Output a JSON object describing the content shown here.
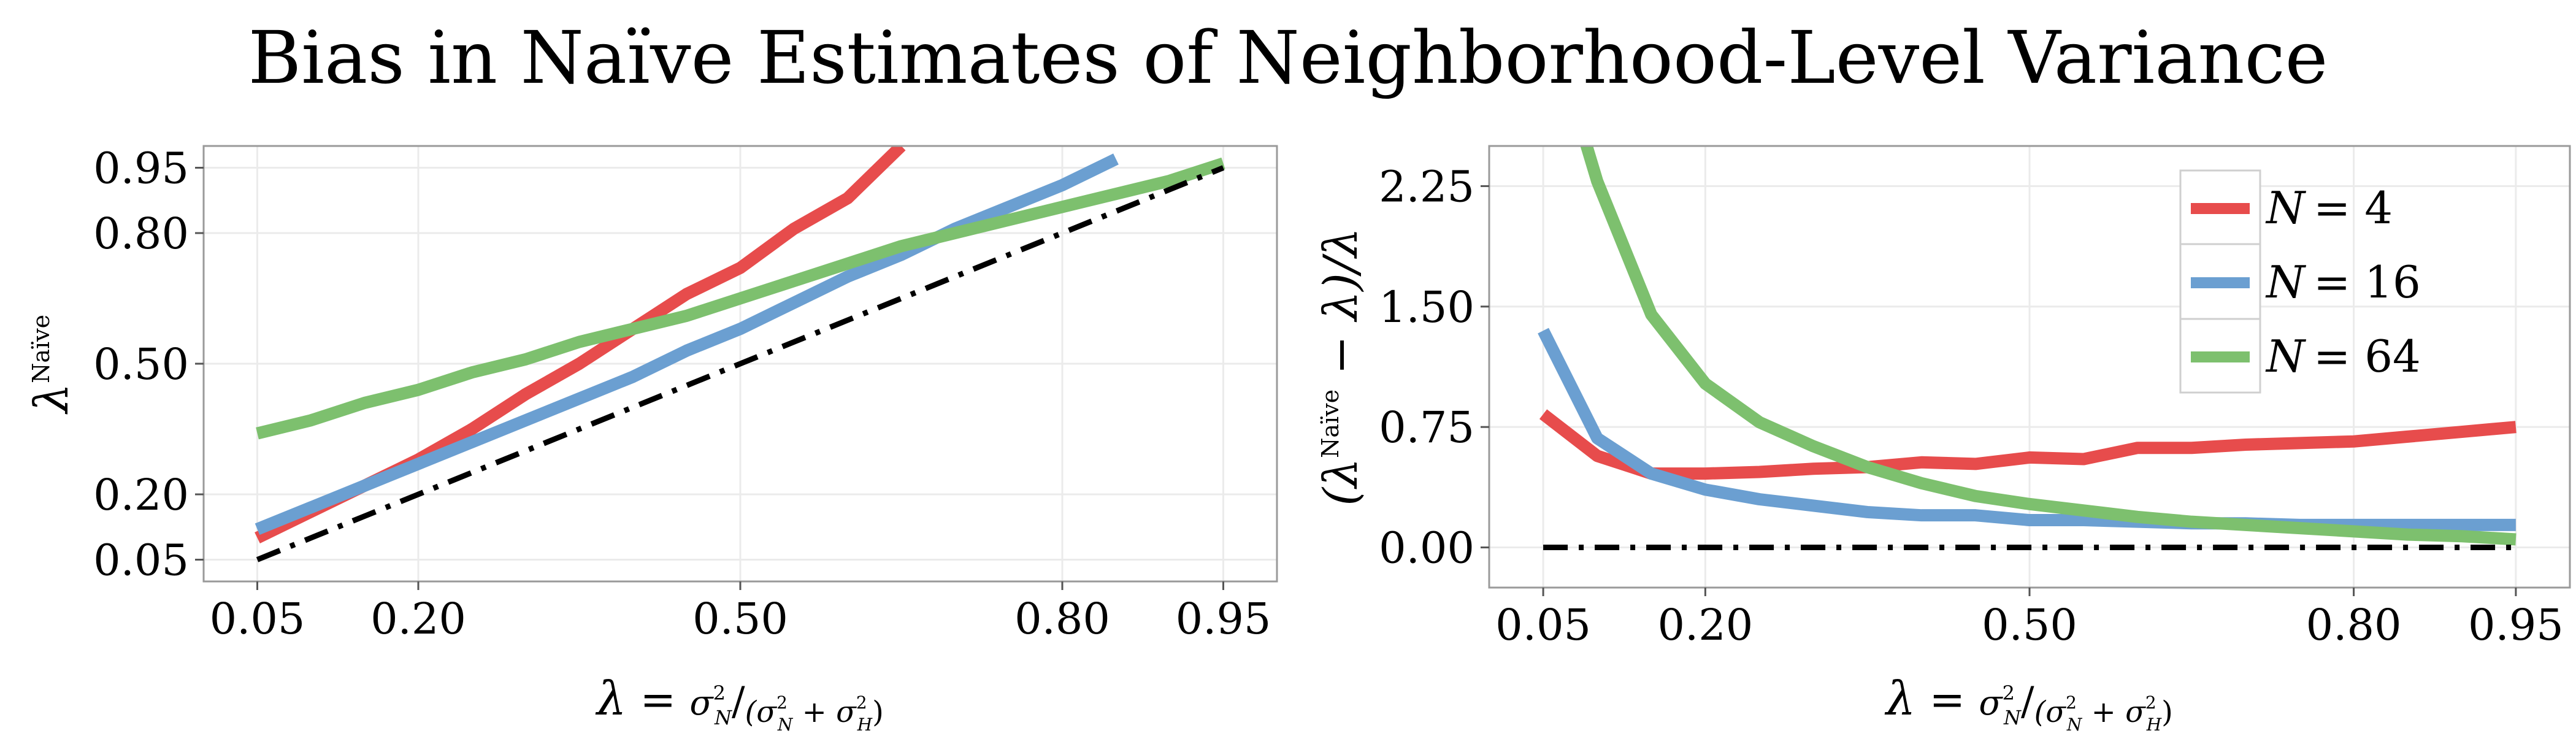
{
  "figure_title": "Bias in Naïve Estimates of Neighborhood-Level Variance",
  "colors": {
    "N = 4": "#E74C4C",
    "N = 16": "#6B9FD1",
    "N = 64": "#7DC06E",
    "reference": "#000000",
    "grid": "#EBEBEB",
    "panel_border": "#9A9A9A"
  },
  "legend": {
    "entries": [
      {
        "name": "N = 4",
        "N": "N",
        "eq": "= 4"
      },
      {
        "name": "N = 16",
        "N": "N",
        "eq": "= 16"
      },
      {
        "name": "N = 64",
        "N": "N",
        "eq": "= 64"
      }
    ],
    "placement": "top-right of right panel"
  },
  "chart_data": [
    {
      "type": "line",
      "panel": "left",
      "xlabel": {
        "lambda": "λ",
        "eq": " = ",
        "num": "σ",
        "num_sub": "N",
        "num_sup": "2",
        "den_open": "(σ",
        "den_sub1": "N",
        "den_sup1": "2",
        "plus": " + σ",
        "den_sub2": "H",
        "den_sup2": "2",
        "den_close": ")"
      },
      "ylabel": {
        "lambda": "λ",
        "sup": "Naïve"
      },
      "xlim": [
        0.0,
        1.0
      ],
      "ylim": [
        0.0,
        1.0
      ],
      "xticks": [
        "0.05",
        "0.20",
        "0.50",
        "0.80",
        "0.95"
      ],
      "yticks": [
        "0.05",
        "0.20",
        "0.50",
        "0.80",
        "0.95"
      ],
      "x": [
        0.05,
        0.1,
        0.15,
        0.2,
        0.25,
        0.3,
        0.35,
        0.4,
        0.45,
        0.5,
        0.55,
        0.6,
        0.65,
        0.7,
        0.75,
        0.8,
        0.85,
        0.9,
        0.95
      ],
      "series": [
        {
          "name": "N = 4",
          "values": [
            0.1,
            0.16,
            0.22,
            0.28,
            0.35,
            0.43,
            0.5,
            0.58,
            0.66,
            0.72,
            0.81,
            0.88,
            1.0,
            null,
            null,
            null,
            null,
            null,
            null
          ]
        },
        {
          "name": "N = 16",
          "values": [
            0.12,
            0.17,
            0.22,
            0.27,
            0.32,
            0.37,
            0.42,
            0.47,
            0.53,
            0.58,
            0.64,
            0.7,
            0.75,
            0.81,
            0.86,
            0.91,
            0.97,
            null,
            null
          ]
        },
        {
          "name": "N = 64",
          "values": [
            0.34,
            0.37,
            0.41,
            0.44,
            0.48,
            0.51,
            0.55,
            0.58,
            0.61,
            0.65,
            0.69,
            0.73,
            0.77,
            0.8,
            0.83,
            0.86,
            0.89,
            0.92,
            0.96
          ]
        },
        {
          "reference": true,
          "values": [
            0.05,
            0.1,
            0.15,
            0.2,
            0.25,
            0.3,
            0.35,
            0.4,
            0.45,
            0.5,
            0.55,
            0.6,
            0.65,
            0.7,
            0.75,
            0.8,
            0.85,
            0.9,
            0.95
          ]
        }
      ],
      "grid": true
    },
    {
      "type": "line",
      "panel": "right",
      "xlabel": {
        "lambda": "λ",
        "eq": " = ",
        "num": "σ",
        "num_sub": "N",
        "num_sup": "2",
        "den_open": "(σ",
        "den_sub1": "N",
        "den_sup1": "2",
        "plus": " + σ",
        "den_sub2": "H",
        "den_sup2": "2",
        "den_close": ")"
      },
      "ylabel": {
        "open": "(λ",
        "sup": "Naïve",
        "rest": " − λ)/λ"
      },
      "xlim": [
        0.0,
        1.0
      ],
      "ylim": [
        -0.25,
        2.5
      ],
      "xticks": [
        "0.05",
        "0.20",
        "0.50",
        "0.80",
        "0.95"
      ],
      "yticks": [
        "0.00",
        "0.75",
        "1.50",
        "2.25"
      ],
      "x": [
        0.05,
        0.1,
        0.15,
        0.2,
        0.25,
        0.3,
        0.35,
        0.4,
        0.45,
        0.5,
        0.55,
        0.6,
        0.65,
        0.7,
        0.75,
        0.8,
        0.85,
        0.9,
        0.95
      ],
      "series": [
        {
          "name": "N = 4",
          "values": [
            0.83,
            0.57,
            0.46,
            0.46,
            0.47,
            0.49,
            0.5,
            0.53,
            0.52,
            0.56,
            0.55,
            0.62,
            0.62,
            0.64,
            0.65,
            0.66,
            0.69,
            0.72,
            0.75
          ]
        },
        {
          "name": "N = 16",
          "values": [
            1.35,
            0.68,
            0.46,
            0.36,
            0.3,
            0.26,
            0.22,
            0.2,
            0.2,
            0.17,
            0.17,
            0.16,
            0.15,
            0.15,
            0.14,
            0.14,
            0.14,
            0.14,
            0.14
          ]
        },
        {
          "name": "N = 64",
          "values": [
            3.4,
            2.28,
            1.45,
            1.02,
            0.78,
            0.63,
            0.5,
            0.4,
            0.32,
            0.27,
            0.23,
            0.19,
            0.16,
            0.14,
            0.12,
            0.1,
            0.08,
            0.07,
            0.05
          ]
        },
        {
          "reference": true,
          "values": [
            0,
            0,
            0,
            0,
            0,
            0,
            0,
            0,
            0,
            0,
            0,
            0,
            0,
            0,
            0,
            0,
            0,
            0,
            0
          ]
        }
      ],
      "grid": true
    }
  ]
}
